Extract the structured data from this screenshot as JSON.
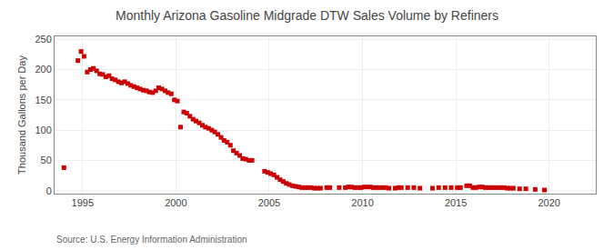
{
  "chart_data": {
    "type": "scatter",
    "title": "Monthly Arizona Gasoline Midgrade DTW Sales Volume by Refiners",
    "ylabel": "Thousand Gallons per Day",
    "annotations": [
      "Source: U.S. Energy Information Administration"
    ],
    "color": "#cc0000",
    "marker": "square",
    "grid": true,
    "xlim": [
      1993.5,
      2022.5
    ],
    "ylim": [
      -5,
      255
    ],
    "xticks": [
      1995,
      2000,
      2005,
      2010,
      2015,
      2020
    ],
    "yticks": [
      0,
      50,
      100,
      150,
      200,
      250
    ],
    "x": [
      1994.0,
      1994.75,
      1994.92,
      1995.08,
      1995.25,
      1995.42,
      1995.58,
      1995.75,
      1995.92,
      1996.08,
      1996.25,
      1996.42,
      1996.58,
      1996.75,
      1996.92,
      1997.08,
      1997.25,
      1997.42,
      1997.58,
      1997.75,
      1997.92,
      1998.08,
      1998.25,
      1998.42,
      1998.58,
      1998.75,
      1998.92,
      1999.08,
      1999.25,
      1999.42,
      1999.58,
      1999.75,
      1999.92,
      2000.08,
      2000.25,
      2000.42,
      2000.58,
      2000.75,
      2000.92,
      2001.08,
      2001.25,
      2001.42,
      2001.58,
      2001.75,
      2001.92,
      2002.08,
      2002.25,
      2002.42,
      2002.58,
      2002.75,
      2002.92,
      2003.08,
      2003.25,
      2003.42,
      2003.58,
      2003.75,
      2003.92,
      2004.08,
      2004.75,
      2004.92,
      2005.08,
      2005.25,
      2005.42,
      2005.58,
      2005.75,
      2005.92,
      2006.08,
      2006.25,
      2006.42,
      2006.58,
      2006.75,
      2006.92,
      2007.08,
      2007.25,
      2007.42,
      2007.58,
      2007.75,
      2008.08,
      2008.25,
      2008.75,
      2009.08,
      2009.25,
      2009.42,
      2009.58,
      2009.75,
      2009.92,
      2010.08,
      2010.25,
      2010.42,
      2010.58,
      2010.75,
      2010.92,
      2011.08,
      2011.25,
      2011.42,
      2011.75,
      2011.92,
      2012.08,
      2012.42,
      2012.75,
      2013.08,
      2013.75,
      2014.08,
      2014.42,
      2014.75,
      2015.08,
      2015.25,
      2015.58,
      2015.75,
      2015.92,
      2016.08,
      2016.25,
      2016.42,
      2016.58,
      2016.75,
      2016.92,
      2017.08,
      2017.25,
      2017.42,
      2017.58,
      2017.75,
      2017.92,
      2018.08,
      2018.42,
      2018.75,
      2019.25,
      2019.75
    ],
    "values": [
      38,
      215,
      230,
      222,
      196,
      200,
      202,
      198,
      193,
      192,
      188,
      190,
      185,
      183,
      180,
      178,
      180,
      177,
      174,
      172,
      170,
      168,
      166,
      165,
      163,
      162,
      165,
      170,
      168,
      165,
      162,
      160,
      150,
      148,
      105,
      130,
      128,
      123,
      118,
      115,
      112,
      108,
      105,
      103,
      100,
      97,
      93,
      88,
      83,
      80,
      75,
      66,
      62,
      58,
      53,
      52,
      50,
      50,
      32,
      30,
      28,
      26,
      22,
      18,
      15,
      12,
      10,
      8,
      7,
      6,
      5,
      5,
      5,
      5,
      4,
      4,
      4,
      5,
      5,
      5,
      5,
      6,
      6,
      5,
      5,
      5,
      6,
      6,
      6,
      5,
      5,
      5,
      5,
      5,
      4,
      4,
      5,
      5,
      5,
      5,
      4,
      4,
      5,
      5,
      5,
      5,
      5,
      8,
      8,
      5,
      5,
      6,
      6,
      5,
      5,
      5,
      5,
      5,
      5,
      5,
      4,
      4,
      4,
      3,
      3,
      2,
      1
    ]
  }
}
